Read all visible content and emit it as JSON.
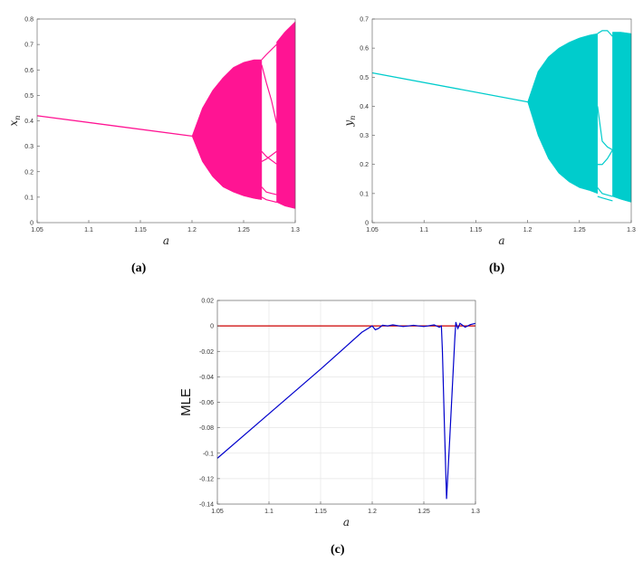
{
  "figure": {
    "captions": [
      "(a)",
      "(b)",
      "(c)"
    ]
  },
  "chart_data": [
    {
      "id": "a",
      "type": "scatter",
      "description_kind": "bifurcation diagram",
      "color": "#ff1493",
      "xlabel": "a",
      "ylabel": "x",
      "ylabel_sub": "n",
      "xlim": [
        1.05,
        1.3
      ],
      "ylim": [
        0,
        0.8
      ],
      "xticks": [
        "1.05",
        "1.1",
        "1.15",
        "1.2",
        "1.25",
        "1.3"
      ],
      "yticks": [
        "0",
        "0.1",
        "0.2",
        "0.3",
        "0.4",
        "0.5",
        "0.6",
        "0.7",
        "0.8"
      ],
      "fixed_point_line": {
        "x": [
          1.05,
          1.2
        ],
        "y": [
          0.42,
          0.34
        ]
      },
      "chaotic_band": {
        "x": [
          1.2,
          1.21,
          1.22,
          1.23,
          1.24,
          1.25,
          1.26,
          1.2675
        ],
        "upper": [
          0.34,
          0.45,
          0.52,
          0.57,
          0.61,
          0.63,
          0.64,
          0.64
        ],
        "lower": [
          0.34,
          0.24,
          0.18,
          0.14,
          0.12,
          0.105,
          0.095,
          0.09
        ]
      },
      "periodic_window": {
        "x_start": 1.2675,
        "x_end": 1.282,
        "branches": [
          {
            "x": [
              1.2675,
              1.272,
              1.277,
              1.282
            ],
            "y": [
              0.64,
              0.66,
              0.68,
              0.7
            ]
          },
          {
            "x": [
              1.2675,
              1.272,
              1.277,
              1.282
            ],
            "y": [
              0.62,
              0.55,
              0.48,
              0.39
            ]
          },
          {
            "x": [
              1.2675,
              1.272,
              1.277,
              1.282
            ],
            "y": [
              0.28,
              0.26,
              0.245,
              0.23
            ]
          },
          {
            "x": [
              1.2675,
              1.272,
              1.277,
              1.282
            ],
            "y": [
              0.24,
              0.25,
              0.265,
              0.28
            ]
          },
          {
            "x": [
              1.2675,
              1.272,
              1.277,
              1.282
            ],
            "y": [
              0.14,
              0.12,
              0.115,
              0.11
            ]
          },
          {
            "x": [
              1.2675,
              1.272,
              1.277,
              1.282
            ],
            "y": [
              0.1,
              0.09,
              0.085,
              0.08
            ]
          }
        ]
      },
      "chaotic_band_2": {
        "x": [
          1.282,
          1.29,
          1.3
        ],
        "upper": [
          0.71,
          0.75,
          0.79
        ],
        "lower": [
          0.08,
          0.065,
          0.055
        ]
      }
    },
    {
      "id": "b",
      "type": "scatter",
      "description_kind": "bifurcation diagram",
      "color": "#00cccc",
      "xlabel": "a",
      "ylabel": "y",
      "ylabel_sub": "n",
      "xlim": [
        1.05,
        1.3
      ],
      "ylim": [
        0,
        0.7
      ],
      "xticks": [
        "1.05",
        "1.1",
        "1.15",
        "1.2",
        "1.25",
        "1.3"
      ],
      "yticks": [
        "0",
        "0.1",
        "0.2",
        "0.3",
        "0.4",
        "0.5",
        "0.6",
        "0.7"
      ],
      "fixed_point_line": {
        "x": [
          1.05,
          1.2
        ],
        "y": [
          0.515,
          0.415
        ]
      },
      "chaotic_band": {
        "x": [
          1.2,
          1.21,
          1.22,
          1.23,
          1.24,
          1.25,
          1.26,
          1.2675
        ],
        "upper": [
          0.415,
          0.52,
          0.57,
          0.6,
          0.62,
          0.635,
          0.645,
          0.65
        ],
        "lower": [
          0.415,
          0.3,
          0.22,
          0.17,
          0.14,
          0.12,
          0.11,
          0.1
        ]
      },
      "periodic_window": {
        "x_start": 1.2675,
        "x_end": 1.282,
        "branches": [
          {
            "x": [
              1.2675,
              1.272,
              1.277,
              1.282
            ],
            "y": [
              0.65,
              0.66,
              0.66,
              0.64
            ]
          },
          {
            "x": [
              1.2675,
              1.272,
              1.277,
              1.282
            ],
            "y": [
              0.4,
              0.28,
              0.26,
              0.25
            ]
          },
          {
            "x": [
              1.2675,
              1.272,
              1.277,
              1.282
            ],
            "y": [
              0.2,
              0.2,
              0.22,
              0.25
            ]
          },
          {
            "x": [
              1.2675,
              1.272,
              1.277,
              1.282
            ],
            "y": [
              0.12,
              0.1,
              0.095,
              0.09
            ]
          },
          {
            "x": [
              1.2675,
              1.272,
              1.277,
              1.282
            ],
            "y": [
              0.09,
              0.085,
              0.08,
              0.075
            ]
          }
        ]
      },
      "chaotic_band_2": {
        "x": [
          1.282,
          1.29,
          1.3
        ],
        "upper": [
          0.655,
          0.655,
          0.65
        ],
        "lower": [
          0.09,
          0.08,
          0.07
        ]
      }
    },
    {
      "id": "c",
      "type": "line",
      "xlabel": "a",
      "ylabel": "MLE",
      "xlim": [
        1.05,
        1.3
      ],
      "ylim": [
        -0.14,
        0.02
      ],
      "grid": true,
      "xticks": [
        "1.05",
        "1.1",
        "1.15",
        "1.2",
        "1.25",
        "1.3"
      ],
      "yticks": [
        "0.02",
        "0",
        "-0.02",
        "-0.04",
        "-0.06",
        "-0.08",
        "-0.1",
        "-0.12",
        "-0.14"
      ],
      "series": [
        {
          "color": "#cc0000",
          "x": [
            1.05,
            1.3
          ],
          "y": [
            0,
            0
          ]
        },
        {
          "color": "#0000cc",
          "x": [
            1.05,
            1.1,
            1.15,
            1.19,
            1.198,
            1.2,
            1.203,
            1.206,
            1.21,
            1.215,
            1.22,
            1.23,
            1.24,
            1.25,
            1.26,
            1.265,
            1.267,
            1.268,
            1.27,
            1.272,
            1.275,
            1.28,
            1.281,
            1.282,
            1.283,
            1.285,
            1.29,
            1.295,
            1.3
          ],
          "y": [
            -0.104,
            -0.069,
            -0.034,
            -0.005,
            -0.001,
            0,
            -0.003,
            -0.002,
            0.0005,
            0,
            0.0008,
            -0.0005,
            0.0005,
            -0.0005,
            0.0008,
            -0.001,
            0,
            -0.02,
            -0.08,
            -0.136,
            -0.09,
            -0.01,
            0.003,
            0,
            -0.002,
            0.002,
            -0.001,
            0.001,
            0.002
          ]
        }
      ]
    }
  ]
}
